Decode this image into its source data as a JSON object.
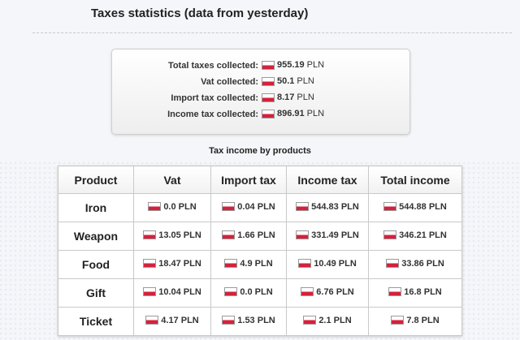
{
  "page": {
    "title": "Taxes statistics (data from yesterday)"
  },
  "currency": "PLN",
  "summary": [
    {
      "label": "Total taxes collected:",
      "value": "955.19"
    },
    {
      "label": "Vat collected:",
      "value": "50.1"
    },
    {
      "label": "Import tax collected:",
      "value": "8.17"
    },
    {
      "label": "Income tax collected:",
      "value": "896.91"
    }
  ],
  "products_section": {
    "title": "Tax income by products",
    "headers": [
      "Product",
      "Vat",
      "Import tax",
      "Income tax",
      "Total income"
    ],
    "rows": [
      {
        "product": "Iron",
        "vat": "0.0 PLN",
        "import_tax": "0.04 PLN",
        "income_tax": "544.83 PLN",
        "total": "544.88 PLN"
      },
      {
        "product": "Weapon",
        "vat": "13.05 PLN",
        "import_tax": "1.66 PLN",
        "income_tax": "331.49 PLN",
        "total": "346.21 PLN"
      },
      {
        "product": "Food",
        "vat": "18.47 PLN",
        "import_tax": "4.9 PLN",
        "income_tax": "10.49 PLN",
        "total": "33.86 PLN"
      },
      {
        "product": "Gift",
        "vat": "10.04 PLN",
        "import_tax": "0.0 PLN",
        "income_tax": "6.76 PLN",
        "total": "16.8 PLN"
      },
      {
        "product": "Ticket",
        "vat": "4.17 PLN",
        "import_tax": "1.53 PLN",
        "income_tax": "2.1 PLN",
        "total": "7.8 PLN"
      }
    ]
  },
  "icons": {
    "currency_flag": "poland-flag-icon"
  },
  "colors": {
    "flag_red": "#d4213d",
    "flag_white": "#ffffff"
  }
}
